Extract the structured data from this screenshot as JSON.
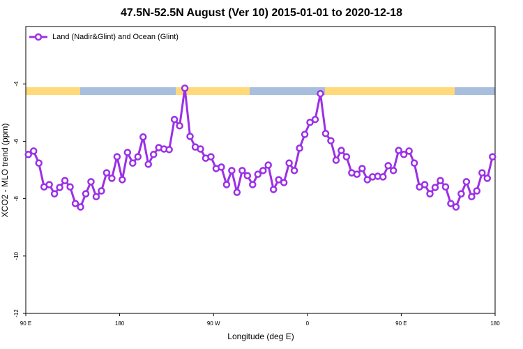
{
  "chart_data": {
    "type": "line",
    "title": "47.5N-52.5N August (Ver 10)   2015-01-01 to 2020-12-18",
    "xlabel": "Longitude (deg E)",
    "ylabel": "XCO2 - MLO trend (ppm)",
    "xlim": [
      90,
      540
    ],
    "ylim": [
      -12,
      -2
    ],
    "xticks": [
      {
        "value": 90,
        "label": "90 E"
      },
      180,
      {
        "value": 270,
        "label": "90 W"
      },
      {
        "value": 360,
        "label": "0"
      },
      {
        "value": 450,
        "label": "90 E"
      },
      {
        "value": 540,
        "label": "180"
      }
    ],
    "yticks": [
      -12,
      -10,
      -8,
      -6,
      -4
    ],
    "legend": "top-left",
    "x": [
      92.5,
      97.5,
      102.5,
      107.5,
      112.5,
      117.5,
      122.5,
      127.5,
      132.5,
      137.5,
      142.5,
      147.5,
      152.5,
      157.5,
      162.5,
      167.5,
      172.5,
      177.5,
      182.5,
      187.5,
      192.5,
      197.5,
      202.5,
      207.5,
      212.5,
      217.5,
      222.5,
      227.5,
      232.5,
      237.5,
      242.5,
      247.5,
      252.5,
      257.5,
      262.5,
      267.5,
      272.5,
      277.5,
      282.5,
      287.5,
      292.5,
      297.5,
      302.5,
      307.5,
      312.5,
      317.5,
      322.5,
      327.5,
      332.5,
      337.5,
      342.5,
      347.5,
      352.5,
      357.5,
      362.5,
      367.5,
      372.5,
      377.5,
      382.5,
      387.5,
      392.5,
      397.5,
      402.5,
      407.5,
      412.5,
      417.5,
      422.5,
      427.5,
      432.5,
      437.5,
      442.5,
      447.5,
      452.5,
      457.5,
      462.5,
      467.5,
      472.5,
      477.5,
      482.5,
      487.5,
      492.5,
      497.5,
      502.5,
      507.5,
      512.5,
      517.5,
      522.5,
      527.5,
      532.5,
      537.5
    ],
    "series": [
      {
        "name": "Land (Nadir&Glint) and Ocean (Glint)",
        "color": "#9b30e6",
        "values": [
          -6.46,
          -6.34,
          -6.76,
          -7.59,
          -7.51,
          -7.83,
          -7.61,
          -7.37,
          -7.59,
          -8.17,
          -8.29,
          -7.83,
          -7.41,
          -7.93,
          -7.73,
          -7.1,
          -7.29,
          -6.54,
          -7.34,
          -6.39,
          -6.76,
          -6.54,
          -5.85,
          -6.8,
          -6.46,
          -6.22,
          -6.27,
          -6.29,
          -5.24,
          -5.46,
          -4.15,
          -5.83,
          -6.2,
          -6.27,
          -6.59,
          -6.54,
          -6.95,
          -6.9,
          -7.51,
          -7.02,
          -7.78,
          -7.02,
          -7.2,
          -7.51,
          -7.15,
          -7.02,
          -6.83,
          -7.68,
          -7.34,
          -7.44,
          -6.76,
          -7.02,
          -6.24,
          -5.76,
          -5.34,
          -5.24,
          -4.34,
          -5.73,
          -5.98,
          -6.66,
          -6.32,
          -6.54,
          -7.1,
          -7.15,
          -6.95,
          -7.34,
          -7.24,
          -7.22,
          -7.24,
          -6.85,
          -7.02,
          -6.32,
          -6.46,
          -6.34,
          -6.76,
          -7.59,
          -7.51,
          -7.83,
          -7.61,
          -7.37,
          -7.59,
          -8.17,
          -8.29,
          -7.83,
          -7.41,
          -7.93,
          -7.73,
          -7.1,
          -7.29,
          -6.54
        ]
      }
    ]
  }
}
